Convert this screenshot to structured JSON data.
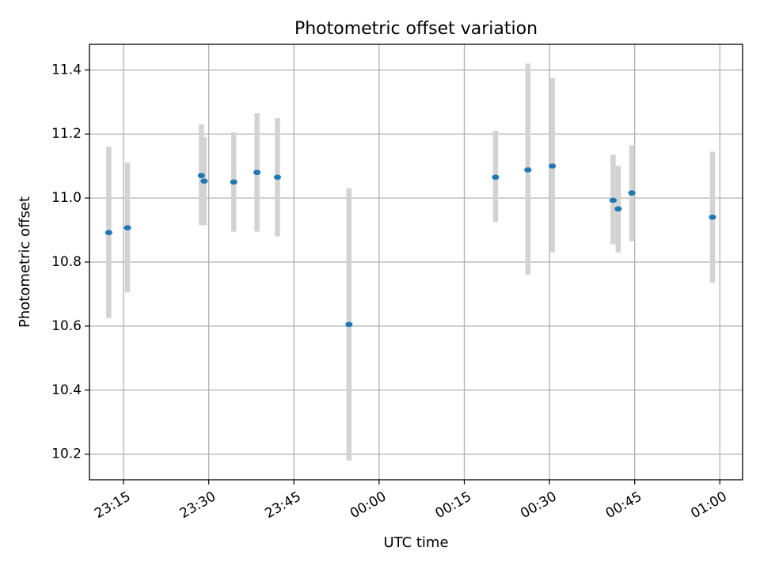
{
  "chart_data": {
    "type": "scatter",
    "title": "Photometric offset variation",
    "xlabel": "UTC time",
    "ylabel": "Photometric offset",
    "grid": true,
    "x_range": [
      "23:09",
      "01:04"
    ],
    "y_range": [
      10.12,
      11.48
    ],
    "x_ticks": [
      "23:15",
      "23:30",
      "23:45",
      "00:00",
      "00:15",
      "00:30",
      "00:45",
      "01:00"
    ],
    "y_ticks": [
      10.2,
      10.4,
      10.6,
      10.8,
      11.0,
      11.2,
      11.4
    ],
    "y_tick_labels": [
      "10.2",
      "10.4",
      "10.6",
      "10.8",
      "11.0",
      "11.2",
      "11.4"
    ],
    "series": [
      {
        "color": "#1f77b4",
        "error_bar_color": "#d3d3d3",
        "points": [
          {
            "x": "23:12.4",
            "y": 10.892,
            "err_low": 10.625,
            "err_high": 11.16
          },
          {
            "x": "23:15.7",
            "y": 10.907,
            "err_low": 10.705,
            "err_high": 11.11
          },
          {
            "x": "23:28.7",
            "y": 11.07,
            "err_low": 10.915,
            "err_high": 11.23
          },
          {
            "x": "23:29.2",
            "y": 11.053,
            "err_low": 10.915,
            "err_high": 11.19
          },
          {
            "x": "23:34.4",
            "y": 11.05,
            "err_low": 10.895,
            "err_high": 11.205
          },
          {
            "x": "23:38.5",
            "y": 11.08,
            "err_low": 10.895,
            "err_high": 11.265
          },
          {
            "x": "23:42.1",
            "y": 11.065,
            "err_low": 10.88,
            "err_high": 11.25
          },
          {
            "x": "23:54.7",
            "y": 10.605,
            "err_low": 10.18,
            "err_high": 11.03
          },
          {
            "x": "00:20.5",
            "y": 11.065,
            "err_low": 10.925,
            "err_high": 11.21
          },
          {
            "x": "00:26.2",
            "y": 11.088,
            "err_low": 10.76,
            "err_high": 11.42
          },
          {
            "x": "00:30.5",
            "y": 11.1,
            "err_low": 10.83,
            "err_high": 11.375
          },
          {
            "x": "00:41.2",
            "y": 10.993,
            "err_low": 10.855,
            "err_high": 11.135
          },
          {
            "x": "00:42.1",
            "y": 10.966,
            "err_low": 10.83,
            "err_high": 11.1
          },
          {
            "x": "00:44.5",
            "y": 11.016,
            "err_low": 10.865,
            "err_high": 11.165
          },
          {
            "x": "00:58.7",
            "y": 10.94,
            "err_low": 10.735,
            "err_high": 11.145
          }
        ]
      }
    ]
  }
}
